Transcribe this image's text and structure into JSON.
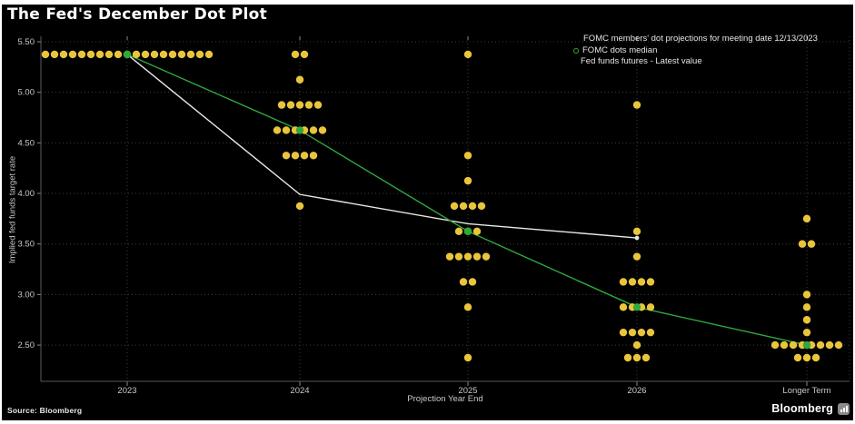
{
  "header": {
    "title": "The Fed's December Dot Plot"
  },
  "footer": {
    "source": "Source: Bloomberg",
    "brand": "Bloomberg"
  },
  "colors": {
    "background": "#000000",
    "page_border": "#ffffff",
    "dot_yellow": "#e9c53b",
    "median_green": "#2fa83e",
    "futures_white": "#e8e8e8",
    "grid": "#3d3d3d",
    "axis": "#5a5a5a",
    "tick_text": "#c9c9c9"
  },
  "chart_data": {
    "type": "scatter",
    "title": "The Fed's December Dot Plot",
    "xlabel": "Projection Year End",
    "ylabel": "Implied fed funds target rate",
    "categories": [
      "2023",
      "2024",
      "2025",
      "2026",
      "Longer Term"
    ],
    "y_ticks": [
      5.5,
      5.0,
      4.5,
      4.0,
      3.5,
      3.0,
      2.5
    ],
    "ylim": [
      2.14,
      5.55
    ],
    "grid": "dotted",
    "legend_position": "top-right",
    "legend": [
      {
        "label": "FOMC members' dot projections for meeting date 12/13/2023",
        "marker": "filled-dot",
        "color": "#e9c53b"
      },
      {
        "label": "FOMC dots median",
        "marker": "open-circle",
        "color": "#2fa83e"
      },
      {
        "label": "Fed funds futures - Latest value",
        "marker": "small-dot",
        "color": "#e8e8e8"
      }
    ],
    "dot_distributions": [
      {
        "category": "2023",
        "rows": [
          {
            "value": 5.375,
            "count": 19
          }
        ]
      },
      {
        "category": "2024",
        "rows": [
          {
            "value": 5.375,
            "count": 2
          },
          {
            "value": 5.125,
            "count": 1
          },
          {
            "value": 4.875,
            "count": 5
          },
          {
            "value": 4.625,
            "count": 6
          },
          {
            "value": 4.375,
            "count": 4
          },
          {
            "value": 3.875,
            "count": 1
          }
        ]
      },
      {
        "category": "2025",
        "rows": [
          {
            "value": 5.375,
            "count": 1
          },
          {
            "value": 4.375,
            "count": 1
          },
          {
            "value": 4.125,
            "count": 1
          },
          {
            "value": 3.875,
            "count": 4
          },
          {
            "value": 3.625,
            "count": 3
          },
          {
            "value": 3.375,
            "count": 5
          },
          {
            "value": 3.125,
            "count": 2
          },
          {
            "value": 2.875,
            "count": 1
          },
          {
            "value": 2.375,
            "count": 1
          }
        ]
      },
      {
        "category": "2026",
        "rows": [
          {
            "value": 4.875,
            "count": 1
          },
          {
            "value": 3.625,
            "count": 1
          },
          {
            "value": 3.375,
            "count": 1
          },
          {
            "value": 3.125,
            "count": 4
          },
          {
            "value": 2.875,
            "count": 4
          },
          {
            "value": 2.625,
            "count": 4
          },
          {
            "value": 2.5,
            "count": 1
          },
          {
            "value": 2.375,
            "count": 3
          }
        ]
      },
      {
        "category": "Longer Term",
        "rows": [
          {
            "value": 3.75,
            "count": 1
          },
          {
            "value": 3.5,
            "count": 2
          },
          {
            "value": 3.0,
            "count": 1
          },
          {
            "value": 2.875,
            "count": 1
          },
          {
            "value": 2.75,
            "count": 1
          },
          {
            "value": 2.625,
            "count": 1
          },
          {
            "value": 2.5,
            "count": 8
          },
          {
            "value": 2.375,
            "count": 3
          }
        ]
      }
    ],
    "series": [
      {
        "name": "FOMC dots median",
        "type": "line",
        "categories": [
          "2023",
          "2024",
          "2025",
          "2026",
          "Longer Term"
        ],
        "values": [
          5.375,
          4.625,
          3.625,
          2.875,
          2.5
        ],
        "color": "#2fa83e"
      },
      {
        "name": "Fed funds futures - Latest value",
        "type": "line",
        "categories": [
          "2023",
          "2024",
          "2025",
          "2026"
        ],
        "values": [
          5.375,
          3.99,
          3.7,
          3.56
        ],
        "color": "#e8e8e8",
        "end_marker": true
      }
    ]
  }
}
